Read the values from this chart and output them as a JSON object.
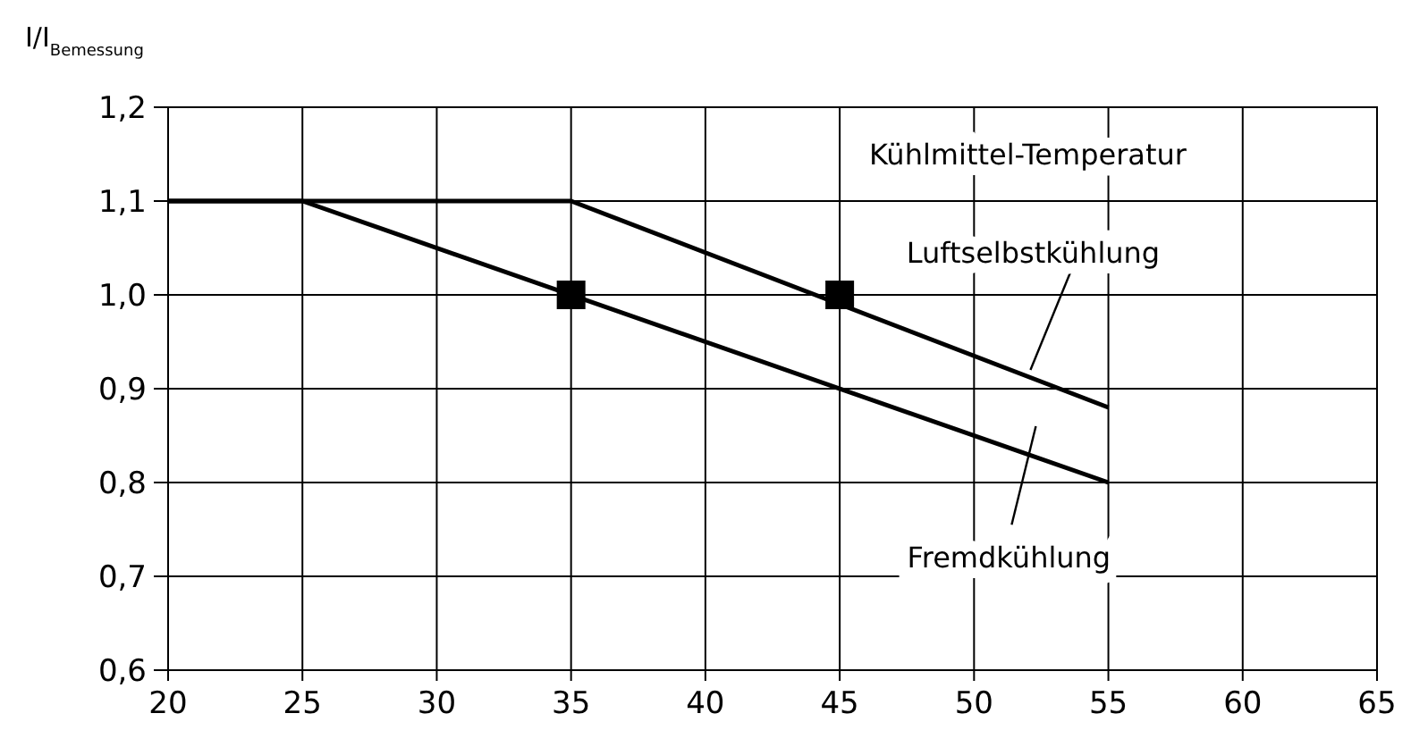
{
  "chart_data": {
    "type": "line",
    "xlabel": "Kühlmittel-Temperatur",
    "ylabel": "I/I$_{Bemessung}$",
    "series": [
      {
        "name": "Luftselbstkühlung",
        "color": "#000000",
        "x": [
          20,
          35,
          55
        ],
        "values": [
          1.1,
          1.1,
          0.88
        ]
      },
      {
        "name": "Fremdkühlung",
        "color": "#000000",
        "x": [
          20,
          25,
          55
        ],
        "values": [
          1.1,
          1.1,
          0.8
        ]
      },
      {
        "type": "scatter",
        "color": "#000000",
        "marker": "square",
        "x": [
          35,
          45
        ],
        "values": [
          1.0,
          1.0
        ]
      }
    ],
    "xlim": [
      20,
      65
    ],
    "xticks": [
      20,
      25,
      30,
      35,
      40,
      45,
      50,
      55,
      60,
      65
    ],
    "ylim": [
      0.6,
      1.2
    ],
    "yticks": [
      {
        "value": 0.6,
        "label": "0,6"
      },
      {
        "value": 0.7,
        "label": "0,7"
      },
      {
        "value": 0.8,
        "label": "0,8"
      },
      {
        "value": 0.9,
        "label": "0,9"
      },
      {
        "value": 1.0,
        "label": "1,0"
      },
      {
        "value": 1.1,
        "label": "1,1"
      },
      {
        "value": 1.2,
        "label": "1,2"
      }
    ],
    "grid": true,
    "marker": "none",
    "line_style": "solid"
  }
}
